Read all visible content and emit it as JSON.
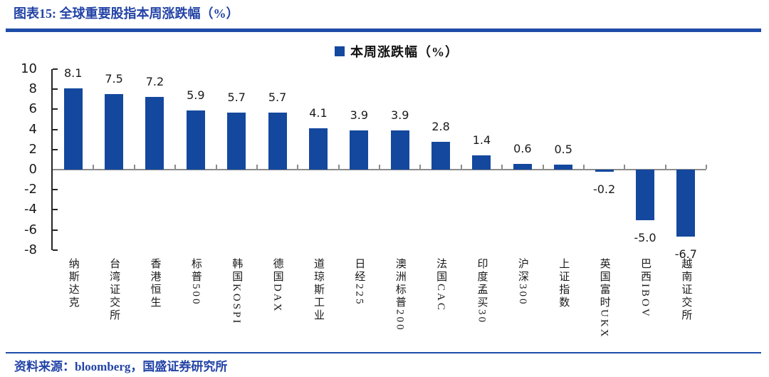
{
  "header": {
    "title": "图表15: 全球重要股指本周涨跌幅（%）"
  },
  "legend": {
    "label": "本周涨跌幅（%）"
  },
  "footer": {
    "source": "资料来源：bloomberg，国盛证券研究所"
  },
  "colors": {
    "bar_blue": "#14489E",
    "text_blue": "#2343A6",
    "divider_blue": "#1E4CA8",
    "axis_dark": "#262626",
    "baseline_gray": "#8C8C8C",
    "label_black": "#1A1A1A"
  },
  "chart_data": {
    "type": "bar",
    "title": "图表15: 全球重要股指本周涨跌幅（%）",
    "legend_entries": [
      "本周涨跌幅（%）"
    ],
    "legend_position": "top",
    "grid": false,
    "categories": [
      "纳斯达克",
      "台湾证交所",
      "香港恒生",
      "标普500",
      "韩国KOSPI",
      "德国DAX",
      "道琼斯工业",
      "日经225",
      "澳洲标普200",
      "法国CAC",
      "印度孟买30",
      "沪深300",
      "上证指数",
      "英国富时UKX",
      "巴西IBOV",
      "越南证交所"
    ],
    "values": [
      8.1,
      7.5,
      7.2,
      5.9,
      5.7,
      5.7,
      4.1,
      3.9,
      3.9,
      2.8,
      1.4,
      0.6,
      0.5,
      -0.2,
      -5.0,
      -6.7
    ],
    "xlabel": "",
    "ylabel": "",
    "ylim": [
      -8,
      10
    ],
    "yticks": [
      10,
      8,
      6,
      4,
      2,
      0,
      -2,
      -4,
      -6,
      -8
    ]
  }
}
